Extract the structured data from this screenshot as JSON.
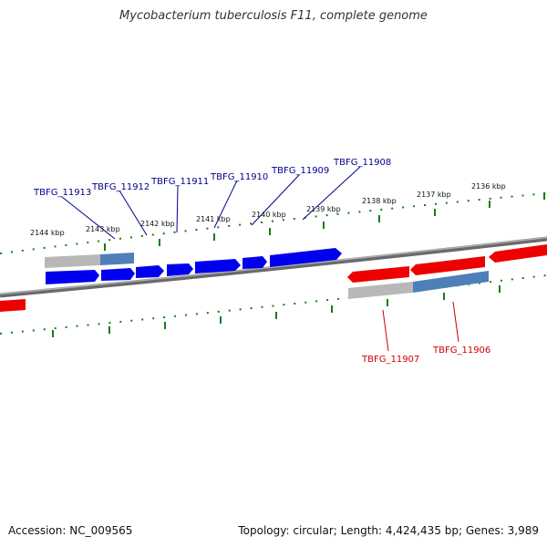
{
  "title": "Mycobacterium tuberculosis F11, complete genome",
  "footer": {
    "accession": "Accession: NC_009565",
    "stats": "Topology: circular; Length: 4,424,435 bp; Genes: 3,989"
  },
  "colors": {
    "forward_gene": "#0000ee",
    "reverse_gene": "#ee0000",
    "forward_label": "#00008b",
    "reverse_label": "#cc0000",
    "tick": "#1a7a1a",
    "backbone": "#777777"
  },
  "ruler_labels": [
    "2144 kbp",
    "2143 kbp",
    "2142 kbp",
    "2141 kbp",
    "2140 kbp",
    "2139 kbp",
    "2138 kbp",
    "2137 kbp",
    "2136 kbp"
  ],
  "forward_gene_labels": [
    "TBFG_11913",
    "TBFG_11912",
    "TBFG_11911",
    "TBFG_11910",
    "TBFG_11909",
    "TBFG_11908"
  ],
  "reverse_gene_labels": [
    "TBFG_11907",
    "TBFG_11906"
  ]
}
